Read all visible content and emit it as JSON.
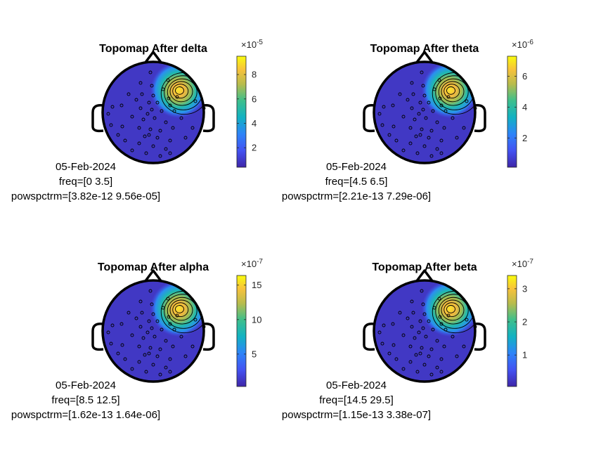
{
  "chart_data": [
    {
      "type": "heatmap",
      "title": "Topomap After delta",
      "colorbar": {
        "exponent": "×10",
        "exponent_power": "-5",
        "ticks": [
          2,
          4,
          6,
          8
        ],
        "range": [
          0.4,
          9.5
        ]
      },
      "info": [
        "05-Feb-2024",
        "freq=[0 3.5]",
        "powspctrm=[3.82e-12 9.56e-05]"
      ]
    },
    {
      "type": "heatmap",
      "title": "Topomap After theta",
      "colorbar": {
        "exponent": "×10",
        "exponent_power": "-6",
        "ticks": [
          2,
          4,
          6
        ],
        "range": [
          0.1,
          7.3
        ]
      },
      "info": [
        "05-Feb-2024",
        "freq=[4.5 6.5]",
        "powspctrm=[2.21e-13 7.29e-06]"
      ]
    },
    {
      "type": "heatmap",
      "title": "Topomap After alpha",
      "colorbar": {
        "exponent": "×10",
        "exponent_power": "-7",
        "ticks": [
          5,
          10,
          15
        ],
        "range": [
          0.3,
          16.4
        ]
      },
      "info": [
        "05-Feb-2024",
        "freq=[8.5 12.5]",
        "powspctrm=[1.62e-13 1.64e-06]"
      ]
    },
    {
      "type": "heatmap",
      "title": "Topomap After beta",
      "colorbar": {
        "exponent": "×10",
        "exponent_power": "-7",
        "ticks": [
          1,
          2,
          3
        ],
        "range": [
          0.05,
          3.4
        ]
      },
      "info": [
        "05-Feb-2024",
        "freq=[14.5 29.5]",
        "powspctrm=[1.15e-13 3.38e-07]"
      ]
    }
  ],
  "colors": {
    "low": "#3e26a8",
    "mid": "#12b2c2",
    "high": "#f9fb0e",
    "outline": "#000000"
  }
}
